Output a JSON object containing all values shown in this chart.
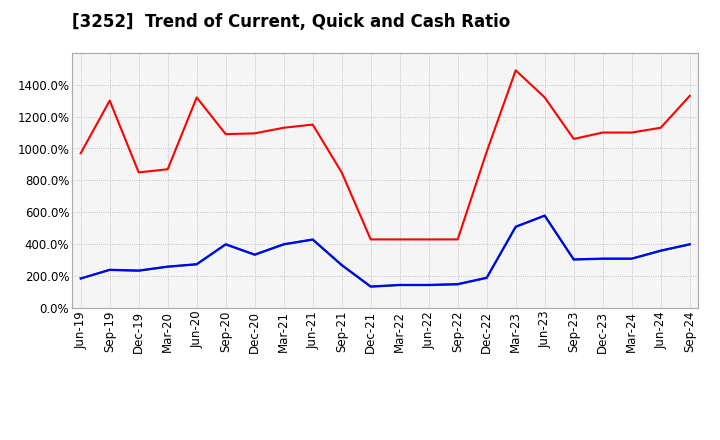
{
  "title": "[3252]  Trend of Current, Quick and Cash Ratio",
  "x_labels": [
    "Jun-19",
    "Sep-19",
    "Dec-19",
    "Mar-20",
    "Jun-20",
    "Sep-20",
    "Dec-20",
    "Mar-21",
    "Jun-21",
    "Sep-21",
    "Dec-21",
    "Mar-22",
    "Jun-22",
    "Sep-22",
    "Dec-22",
    "Mar-23",
    "Jun-23",
    "Sep-23",
    "Dec-23",
    "Mar-24",
    "Jun-24",
    "Sep-24"
  ],
  "current_ratio": [
    970,
    1300,
    850,
    870,
    1320,
    1090,
    1095,
    1130,
    1150,
    850,
    430,
    430,
    430,
    430,
    980,
    1490,
    1320,
    1060,
    1100,
    1100,
    1130,
    1330
  ],
  "quick_ratio": [
    185,
    238,
    233,
    258,
    273,
    398,
    333,
    398,
    428,
    268,
    133,
    143,
    143,
    148,
    188,
    508,
    578,
    303,
    308,
    308,
    358,
    398
  ],
  "cash_ratio": [
    185,
    240,
    235,
    260,
    275,
    400,
    335,
    400,
    430,
    270,
    135,
    145,
    145,
    150,
    190,
    510,
    580,
    305,
    310,
    310,
    360,
    400
  ],
  "current_color": "#ff0000",
  "quick_color": "#008000",
  "cash_color": "#0000ff",
  "ylim": [
    0,
    1600
  ],
  "yticks": [
    0,
    200,
    400,
    600,
    800,
    1000,
    1200,
    1400
  ],
  "background_color": "#ffffff",
  "grid_color": "#b0b0b0",
  "title_fontsize": 12,
  "axis_fontsize": 8.5
}
